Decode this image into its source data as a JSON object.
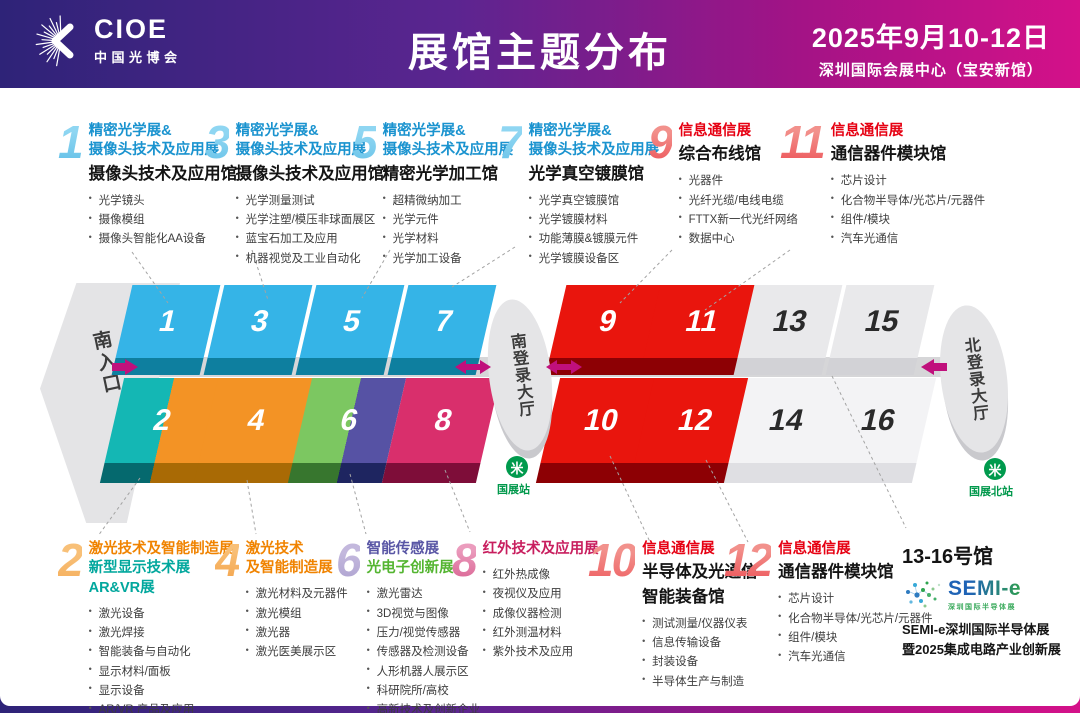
{
  "palette": {
    "header_gradient": [
      "#2e2378",
      "#5b2590",
      "#a31386",
      "#d41189"
    ],
    "accent_magenta": "#c0107c",
    "metro_green": "#009a4d",
    "corridor_gray": "#d6d6d8",
    "text": {
      "blue": "#1a93cf",
      "red": "#e60012",
      "orange": "#f08300",
      "teal": "#00a79d",
      "purple": "#5956a5",
      "green": "#54b531",
      "pink": "#c81e5e",
      "dark": "#141414"
    },
    "num_gradients": {
      "blue": [
        "#8fd6f2",
        "#23a0d8"
      ],
      "red": [
        "#f2918c",
        "#e60012"
      ],
      "orange": [
        "#f8c078",
        "#ee8010"
      ],
      "purple": [
        "#c3b8dd",
        "#6f63ab"
      ],
      "pink": [
        "#eb9cbd",
        "#c2185b"
      ]
    }
  },
  "header": {
    "logo_name": "CIOE",
    "logo_sub": "中国光博会",
    "title": "展馆主题分布",
    "date": "2025年9月10-12日",
    "venue": "深圳国际会展中心（宝安新馆）"
  },
  "map": {
    "south_entrance": "南入口",
    "south_lobby": "南登录大厅",
    "north_lobby": "北登录大厅",
    "station_south": "国展站",
    "station_north": "国展北站",
    "halls": [
      {
        "id": "1",
        "colors": [
          "#35b4e7"
        ],
        "fronts": [
          "#0e7f9f"
        ],
        "label_color": "#ffffff"
      },
      {
        "id": "3",
        "colors": [
          "#35b4e7"
        ],
        "fronts": [
          "#0e7f9f"
        ],
        "label_color": "#ffffff"
      },
      {
        "id": "5",
        "colors": [
          "#35b4e7"
        ],
        "fronts": [
          "#0e7f9f"
        ],
        "label_color": "#ffffff"
      },
      {
        "id": "7",
        "colors": [
          "#35b4e7"
        ],
        "fronts": [
          "#0e7f9f"
        ],
        "label_color": "#ffffff"
      },
      {
        "id": "9",
        "colors": [
          "#e9150d"
        ],
        "fronts": [
          "#8d0004"
        ],
        "label_color": "#ffffff"
      },
      {
        "id": "11",
        "colors": [
          "#e9150d"
        ],
        "fronts": [
          "#8d0004"
        ],
        "label_color": "#ffffff"
      },
      {
        "id": "13",
        "colors": [
          "#e9e9eb"
        ],
        "fronts": [
          "#d2d2d6"
        ],
        "label_color": "#2a2a2a"
      },
      {
        "id": "15",
        "colors": [
          "#e9e9eb"
        ],
        "fronts": [
          "#d2d2d6"
        ],
        "label_color": "#2a2a2a"
      },
      {
        "id": "2",
        "colors": [
          "#14b7b4",
          "#f39325"
        ],
        "fronts": [
          "#05696e",
          "#a96a05"
        ],
        "label_color": "#ffffff"
      },
      {
        "id": "4",
        "colors": [
          "#f39325"
        ],
        "fronts": [
          "#a96a05"
        ],
        "label_color": "#ffffff"
      },
      {
        "id": "6",
        "colors": [
          "#7cc761",
          "#5652a4"
        ],
        "fronts": [
          "#37762e",
          "#1e2560"
        ],
        "label_color": "#ffffff"
      },
      {
        "id": "8",
        "colors": [
          "#d92f6c"
        ],
        "fronts": [
          "#7e0d39"
        ],
        "label_color": "#ffffff"
      },
      {
        "id": "10",
        "colors": [
          "#e9150d"
        ],
        "fronts": [
          "#8d0004"
        ],
        "label_color": "#ffffff"
      },
      {
        "id": "12",
        "colors": [
          "#e9150d"
        ],
        "fronts": [
          "#8d0004"
        ],
        "label_color": "#ffffff"
      },
      {
        "id": "14",
        "colors": [
          "#f3f3f5"
        ],
        "fronts": [
          "#dfdfe3"
        ],
        "label_color": "#2a2a2a"
      },
      {
        "id": "16",
        "colors": [
          "#f3f3f5"
        ],
        "fronts": [
          "#dfdfe3"
        ],
        "label_color": "#2a2a2a"
      }
    ]
  },
  "annotations_top": [
    {
      "number": "1",
      "num_grad": "blue",
      "lines": [
        {
          "text": "精密光学展&",
          "color": "blue"
        },
        {
          "text": "摄像头技术及应用展",
          "color": "blue"
        },
        {
          "text": "摄像头技术及应用馆",
          "color": "dark",
          "venue": true
        }
      ],
      "bullets": [
        "光学镜头",
        "摄像模组",
        "摄像头智能化AA设备"
      ]
    },
    {
      "number": "3",
      "num_grad": "blue",
      "lines": [
        {
          "text": "精密光学展&",
          "color": "blue"
        },
        {
          "text": "摄像头技术及应用展",
          "color": "blue"
        },
        {
          "text": "摄像头技术及应用馆",
          "color": "dark",
          "venue": true
        }
      ],
      "bullets": [
        "光学测量测试",
        "光学注塑/模压非球面展区",
        "蓝宝石加工及应用",
        "机器视觉及工业自动化"
      ]
    },
    {
      "number": "5",
      "num_grad": "blue",
      "lines": [
        {
          "text": "精密光学展&",
          "color": "blue"
        },
        {
          "text": "摄像头技术及应用展",
          "color": "blue"
        },
        {
          "text": "精密光学加工馆",
          "color": "dark",
          "venue": true
        }
      ],
      "bullets": [
        "超精微纳加工",
        "光学元件",
        "光学材料",
        "光学加工设备"
      ]
    },
    {
      "number": "7",
      "num_grad": "blue",
      "lines": [
        {
          "text": "精密光学展&",
          "color": "blue"
        },
        {
          "text": "摄像头技术及应用展",
          "color": "blue"
        },
        {
          "text": "光学真空镀膜馆",
          "color": "dark",
          "venue": true
        }
      ],
      "bullets": [
        "光学真空镀膜馆",
        "光学镀膜材料",
        "功能薄膜&镀膜元件",
        "光学镀膜设备区"
      ]
    },
    {
      "number": "9",
      "num_grad": "red",
      "lines": [
        {
          "text": "信息通信展",
          "color": "red"
        },
        {
          "text": "综合布线馆",
          "color": "dark",
          "venue": true
        }
      ],
      "bullets": [
        "光器件",
        "光纤光缆/电线电缆",
        "FTTX新一代光纤网络",
        "数据中心"
      ]
    },
    {
      "number": "11",
      "num_grad": "red",
      "lines": [
        {
          "text": "信息通信展",
          "color": "red"
        },
        {
          "text": "通信器件模块馆",
          "color": "dark",
          "venue": true
        }
      ],
      "bullets": [
        "芯片设计",
        "化合物半导体/光芯片/元器件",
        "组件/模块",
        "汽车光通信"
      ]
    }
  ],
  "annotations_bottom": [
    {
      "number": "2",
      "num_grad": "orange",
      "lines": [
        {
          "text": "激光技术及智能制造展",
          "color": "orange"
        },
        {
          "text": "新型显示技术展",
          "color": "teal"
        },
        {
          "text": "AR&VR展",
          "color": "teal"
        }
      ],
      "bullets": [
        "激光设备",
        "激光焊接",
        "智能装备与自动化",
        "显示材料/面板",
        "显示设备",
        "AR/VR 产品及应用"
      ]
    },
    {
      "number": "4",
      "num_grad": "orange",
      "lines": [
        {
          "text": "激光技术",
          "color": "orange"
        },
        {
          "text": "及智能制造展",
          "color": "orange"
        }
      ],
      "bullets": [
        "激光材料及元器件",
        "激光模组",
        "激光器",
        "激光医美展示区"
      ]
    },
    {
      "number": "6",
      "num_grad": "purple",
      "lines": [
        {
          "text": "智能传感展",
          "color": "purple"
        },
        {
          "text": "光电子创新展",
          "color": "green"
        }
      ],
      "bullets": [
        "激光雷达",
        "3D视觉与图像",
        "压力/视觉传感器",
        "传感器及检测设备",
        "人形机器人展示区",
        "科研院所/高校",
        "高新技术及创新企业"
      ]
    },
    {
      "number": "8",
      "num_grad": "pink",
      "lines": [
        {
          "text": "红外技术及应用展",
          "color": "pink"
        }
      ],
      "bullets": [
        "红外热成像",
        "夜视仪及应用",
        "成像仪器检测",
        "红外测温材料",
        "紫外技术及应用"
      ]
    },
    {
      "number": "10",
      "num_grad": "red",
      "lines": [
        {
          "text": "信息通信展",
          "color": "red"
        },
        {
          "text": "半导体及光通信",
          "color": "dark",
          "venue": true
        },
        {
          "text": "智能装备馆",
          "color": "dark",
          "venue": true
        }
      ],
      "bullets": [
        "测试测量/仪器仪表",
        "信息传输设备",
        "封装设备",
        "半导体生产与制造"
      ]
    },
    {
      "number": "12",
      "num_grad": "red",
      "lines": [
        {
          "text": "信息通信展",
          "color": "red"
        },
        {
          "text": "通信器件模块馆",
          "color": "dark",
          "venue": true
        }
      ],
      "bullets": [
        "芯片设计",
        "化合物半导体/光芯片/元器件",
        "组件/模块",
        "汽车光通信"
      ]
    }
  ],
  "semi": {
    "heading": "13-16号馆",
    "logo_text": "SEMI-e",
    "logo_tagline": "深圳国际半导体展",
    "line1": "SEMI-e深圳国际半导体展",
    "line2": "暨2025集成电路产业创新展"
  }
}
